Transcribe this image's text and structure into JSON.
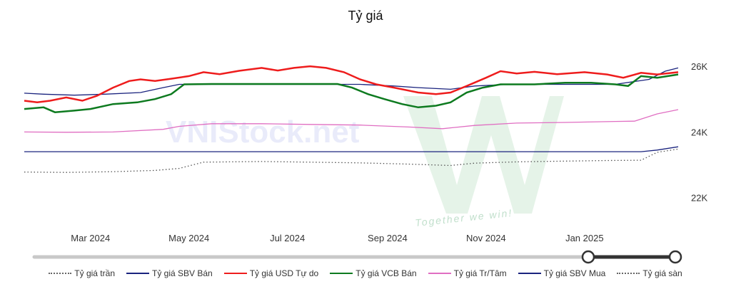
{
  "chart_data": {
    "type": "line",
    "title": "Tỷ giá",
    "xlabel": "",
    "ylabel": "",
    "x_range": [
      "2024-01-20",
      "2025-02-28"
    ],
    "ylim": [
      21300,
      26500
    ],
    "y_ticks": [
      22000,
      24000,
      26000
    ],
    "y_tick_labels": [
      "22K",
      "24K",
      "26K"
    ],
    "x_ticks": [
      {
        "date": "2024-03-01",
        "label": "Mar 2024"
      },
      {
        "date": "2024-05-01",
        "label": "May 2024"
      },
      {
        "date": "2024-07-01",
        "label": "Jul 2024"
      },
      {
        "date": "2024-09-01",
        "label": "Sep 2024"
      },
      {
        "date": "2024-11-01",
        "label": "Nov 2024"
      },
      {
        "date": "2025-01-01",
        "label": "Jan 2025"
      }
    ],
    "grid": false,
    "legend_position": "bottom",
    "watermark": {
      "main": "VNIStock.net",
      "sub": "Together we win!"
    },
    "series": [
      {
        "name": "Tỷ giá trần",
        "color": "#555555",
        "style": "dotted",
        "points": [
          [
            "2024-01-20",
            22780
          ],
          [
            "2024-02-15",
            22770
          ],
          [
            "2024-03-15",
            22790
          ],
          [
            "2024-04-10",
            22830
          ],
          [
            "2024-04-25",
            22890
          ],
          [
            "2024-05-10",
            23080
          ],
          [
            "2024-06-15",
            23100
          ],
          [
            "2024-07-15",
            23080
          ],
          [
            "2024-08-15",
            23060
          ],
          [
            "2024-09-15",
            23020
          ],
          [
            "2024-10-10",
            22980
          ],
          [
            "2024-10-25",
            23050
          ],
          [
            "2024-11-20",
            23090
          ],
          [
            "2024-12-15",
            23110
          ],
          [
            "2025-01-15",
            23130
          ],
          [
            "2025-02-05",
            23140
          ],
          [
            "2025-02-15",
            23380
          ],
          [
            "2025-02-28",
            23480
          ]
        ]
      },
      {
        "name": "Tỷ giá SBV Bán",
        "color": "#1a237e",
        "style": "solid",
        "points": [
          [
            "2024-01-20",
            25180
          ],
          [
            "2024-02-01",
            25150
          ],
          [
            "2024-02-20",
            25120
          ],
          [
            "2024-03-10",
            25150
          ],
          [
            "2024-04-01",
            25200
          ],
          [
            "2024-04-15",
            25350
          ],
          [
            "2024-04-25",
            25450
          ],
          [
            "2024-05-20",
            25450
          ],
          [
            "2024-07-01",
            25450
          ],
          [
            "2024-08-15",
            25450
          ],
          [
            "2024-09-05",
            25400
          ],
          [
            "2024-09-20",
            25350
          ],
          [
            "2024-10-10",
            25300
          ],
          [
            "2024-10-25",
            25400
          ],
          [
            "2024-11-15",
            25450
          ],
          [
            "2024-12-15",
            25450
          ],
          [
            "2025-01-20",
            25450
          ],
          [
            "2025-02-10",
            25600
          ],
          [
            "2025-02-20",
            25850
          ],
          [
            "2025-02-28",
            25950
          ]
        ]
      },
      {
        "name": "Tỷ giá USD Tự do",
        "color": "#ee1c1c",
        "style": "solid",
        "points": [
          [
            "2024-01-20",
            24950
          ],
          [
            "2024-01-28",
            24900
          ],
          [
            "2024-02-05",
            24950
          ],
          [
            "2024-02-15",
            25050
          ],
          [
            "2024-02-25",
            24950
          ],
          [
            "2024-03-05",
            25100
          ],
          [
            "2024-03-15",
            25350
          ],
          [
            "2024-03-25",
            25550
          ],
          [
            "2024-04-01",
            25600
          ],
          [
            "2024-04-10",
            25550
          ],
          [
            "2024-04-20",
            25620
          ],
          [
            "2024-05-01",
            25700
          ],
          [
            "2024-05-10",
            25820
          ],
          [
            "2024-05-20",
            25760
          ],
          [
            "2024-06-01",
            25860
          ],
          [
            "2024-06-15",
            25950
          ],
          [
            "2024-06-25",
            25870
          ],
          [
            "2024-07-05",
            25950
          ],
          [
            "2024-07-15",
            26000
          ],
          [
            "2024-07-25",
            25950
          ],
          [
            "2024-08-05",
            25820
          ],
          [
            "2024-08-15",
            25600
          ],
          [
            "2024-08-25",
            25450
          ],
          [
            "2024-09-05",
            25350
          ],
          [
            "2024-09-20",
            25200
          ],
          [
            "2024-10-01",
            25150
          ],
          [
            "2024-10-10",
            25200
          ],
          [
            "2024-10-20",
            25400
          ],
          [
            "2024-11-01",
            25650
          ],
          [
            "2024-11-10",
            25850
          ],
          [
            "2024-11-20",
            25780
          ],
          [
            "2024-12-01",
            25830
          ],
          [
            "2024-12-15",
            25760
          ],
          [
            "2025-01-01",
            25820
          ],
          [
            "2025-01-15",
            25750
          ],
          [
            "2025-01-25",
            25650
          ],
          [
            "2025-02-05",
            25800
          ],
          [
            "2025-02-15",
            25750
          ],
          [
            "2025-02-28",
            25820
          ]
        ]
      },
      {
        "name": "Tỷ giá VCB Bán",
        "color": "#0d7a1f",
        "style": "solid",
        "points": [
          [
            "2024-01-20",
            24700
          ],
          [
            "2024-02-01",
            24750
          ],
          [
            "2024-02-08",
            24600
          ],
          [
            "2024-02-20",
            24650
          ],
          [
            "2024-03-01",
            24700
          ],
          [
            "2024-03-15",
            24850
          ],
          [
            "2024-03-30",
            24900
          ],
          [
            "2024-04-10",
            25000
          ],
          [
            "2024-04-20",
            25150
          ],
          [
            "2024-04-28",
            25450
          ],
          [
            "2024-05-15",
            25460
          ],
          [
            "2024-06-15",
            25460
          ],
          [
            "2024-07-15",
            25460
          ],
          [
            "2024-08-01",
            25460
          ],
          [
            "2024-08-10",
            25350
          ],
          [
            "2024-08-20",
            25150
          ],
          [
            "2024-08-30",
            25000
          ],
          [
            "2024-09-10",
            24850
          ],
          [
            "2024-09-20",
            24750
          ],
          [
            "2024-10-01",
            24800
          ],
          [
            "2024-10-10",
            24900
          ],
          [
            "2024-10-20",
            25200
          ],
          [
            "2024-10-30",
            25350
          ],
          [
            "2024-11-10",
            25450
          ],
          [
            "2024-12-01",
            25450
          ],
          [
            "2024-12-20",
            25500
          ],
          [
            "2025-01-05",
            25500
          ],
          [
            "2025-01-20",
            25450
          ],
          [
            "2025-01-28",
            25400
          ],
          [
            "2025-02-05",
            25700
          ],
          [
            "2025-02-15",
            25650
          ],
          [
            "2025-02-28",
            25750
          ]
        ]
      },
      {
        "name": "Tỷ giá Tr/Tâm",
        "color": "#e06ec2",
        "style": "solid",
        "points": [
          [
            "2024-01-20",
            24000
          ],
          [
            "2024-02-15",
            23990
          ],
          [
            "2024-03-15",
            24000
          ],
          [
            "2024-04-15",
            24080
          ],
          [
            "2024-04-25",
            24170
          ],
          [
            "2024-05-15",
            24250
          ],
          [
            "2024-06-15",
            24250
          ],
          [
            "2024-07-15",
            24230
          ],
          [
            "2024-08-15",
            24210
          ],
          [
            "2024-09-15",
            24150
          ],
          [
            "2024-10-05",
            24100
          ],
          [
            "2024-10-25",
            24200
          ],
          [
            "2024-11-20",
            24270
          ],
          [
            "2024-12-20",
            24290
          ],
          [
            "2025-01-20",
            24320
          ],
          [
            "2025-02-01",
            24330
          ],
          [
            "2025-02-15",
            24550
          ],
          [
            "2025-02-28",
            24680
          ]
        ]
      },
      {
        "name": "Tỷ giá SBV Mua",
        "color": "#1a237e",
        "style": "solid",
        "points": [
          [
            "2024-01-20",
            23400
          ],
          [
            "2024-06-15",
            23400
          ],
          [
            "2024-12-15",
            23400
          ],
          [
            "2025-02-05",
            23400
          ],
          [
            "2025-02-15",
            23450
          ],
          [
            "2025-02-28",
            23550
          ]
        ]
      },
      {
        "name": "Tỷ giá sàn",
        "color": "#555555",
        "style": "dotted",
        "points": []
      }
    ]
  }
}
